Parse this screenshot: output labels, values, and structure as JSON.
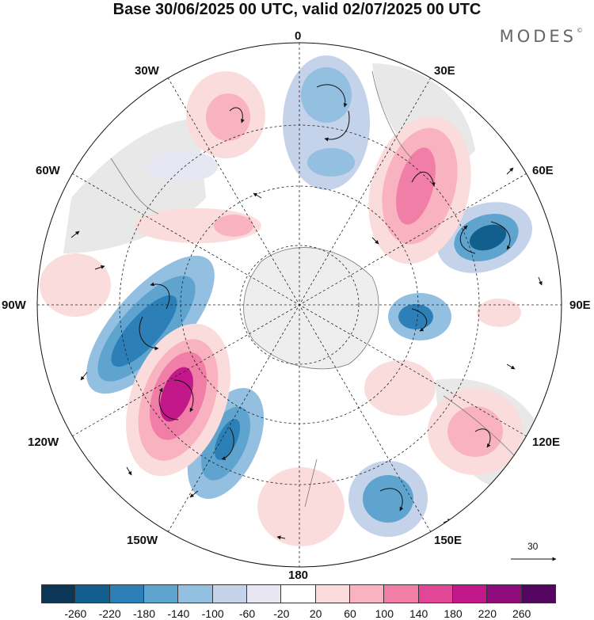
{
  "title": "Base 30/06/2025 00 UTC, valid 02/07/2025 00 UTC",
  "brand": "MODES",
  "brand_mark": "©",
  "longitude_labels": {
    "lon_0": "0",
    "lon_30e": "30E",
    "lon_60e": "60E",
    "lon_90e": "90E",
    "lon_120e": "120E",
    "lon_150e": "150E",
    "lon_180": "180",
    "lon_150w": "150W",
    "lon_120w": "120W",
    "lon_90w": "90W",
    "lon_60w": "60W",
    "lon_30w": "30W"
  },
  "reference_vector": {
    "label": "30"
  },
  "colorbar": {
    "colors": [
      "#0c3655",
      "#125f8d",
      "#2c80b7",
      "#5ea4cf",
      "#93bfe0",
      "#c4d3ea",
      "#e7e7f3",
      "#ffffff",
      "#fbdcdc",
      "#f8b2c0",
      "#f17ea7",
      "#e14697",
      "#c2188a",
      "#8f0b7b",
      "#54055f"
    ],
    "ticks": [
      "-260",
      "-220",
      "-180",
      "-140",
      "-100",
      "-60",
      "-20",
      "20",
      "60",
      "100",
      "140",
      "180",
      "220",
      "260"
    ]
  }
}
